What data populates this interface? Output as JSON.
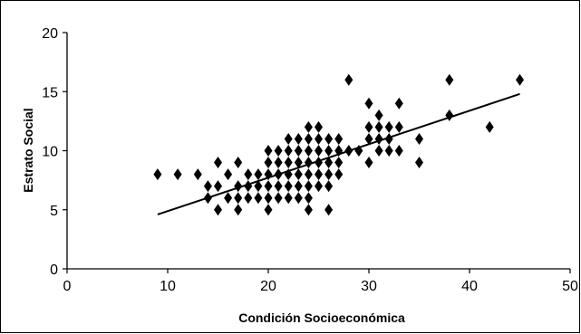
{
  "chart_data": {
    "type": "scatter",
    "title": "",
    "xlabel": "Condición Socioeconómica",
    "ylabel": "Estrato  Social",
    "xlim": [
      0,
      50
    ],
    "ylim": [
      0,
      20
    ],
    "x_ticks": [
      "0",
      "10",
      "20",
      "30",
      "40",
      "50"
    ],
    "y_ticks": [
      "0",
      "5",
      "10",
      "15",
      "20"
    ],
    "grid": false,
    "legend": "none",
    "marker": "diamond",
    "marker_color": "#000000",
    "trendline": {
      "type": "linear",
      "x": [
        9,
        45
      ],
      "y": [
        4.6,
        14.8
      ],
      "color": "#000000"
    },
    "points": [
      [
        9,
        8
      ],
      [
        11,
        8
      ],
      [
        13,
        8
      ],
      [
        14,
        7
      ],
      [
        14,
        6
      ],
      [
        15,
        9
      ],
      [
        15,
        7
      ],
      [
        15,
        5
      ],
      [
        16,
        6
      ],
      [
        16,
        8
      ],
      [
        17,
        9
      ],
      [
        17,
        7
      ],
      [
        17,
        6
      ],
      [
        17,
        5
      ],
      [
        18,
        8
      ],
      [
        18,
        7
      ],
      [
        18,
        6
      ],
      [
        19,
        8
      ],
      [
        19,
        7
      ],
      [
        19,
        6
      ],
      [
        20,
        10
      ],
      [
        20,
        9
      ],
      [
        20,
        8
      ],
      [
        20,
        7
      ],
      [
        20,
        6
      ],
      [
        20,
        5
      ],
      [
        21,
        10
      ],
      [
        21,
        9
      ],
      [
        21,
        8
      ],
      [
        21,
        7
      ],
      [
        21,
        6
      ],
      [
        22,
        11
      ],
      [
        22,
        10
      ],
      [
        22,
        9
      ],
      [
        22,
        8
      ],
      [
        22,
        7
      ],
      [
        22,
        6
      ],
      [
        23,
        11
      ],
      [
        23,
        10
      ],
      [
        23,
        9
      ],
      [
        23,
        8
      ],
      [
        23,
        7
      ],
      [
        23,
        6
      ],
      [
        24,
        12
      ],
      [
        24,
        11
      ],
      [
        24,
        10
      ],
      [
        24,
        9
      ],
      [
        24,
        8
      ],
      [
        24,
        7
      ],
      [
        24,
        6
      ],
      [
        24,
        5
      ],
      [
        25,
        12
      ],
      [
        25,
        11
      ],
      [
        25,
        10
      ],
      [
        25,
        9
      ],
      [
        25,
        8
      ],
      [
        25,
        7
      ],
      [
        26,
        11
      ],
      [
        26,
        10
      ],
      [
        26,
        9
      ],
      [
        26,
        8
      ],
      [
        26,
        7
      ],
      [
        26,
        5
      ],
      [
        27,
        11
      ],
      [
        27,
        10
      ],
      [
        27,
        9
      ],
      [
        27,
        8
      ],
      [
        28,
        16
      ],
      [
        28,
        10
      ],
      [
        29,
        10
      ],
      [
        30,
        14
      ],
      [
        30,
        12
      ],
      [
        30,
        11
      ],
      [
        30,
        9
      ],
      [
        31,
        13
      ],
      [
        31,
        12
      ],
      [
        31,
        11
      ],
      [
        31,
        10
      ],
      [
        32,
        12
      ],
      [
        32,
        11
      ],
      [
        32,
        10
      ],
      [
        33,
        14
      ],
      [
        33,
        12
      ],
      [
        33,
        10
      ],
      [
        35,
        11
      ],
      [
        35,
        9
      ],
      [
        38,
        16
      ],
      [
        38,
        13
      ],
      [
        42,
        12
      ],
      [
        45,
        16
      ]
    ]
  }
}
